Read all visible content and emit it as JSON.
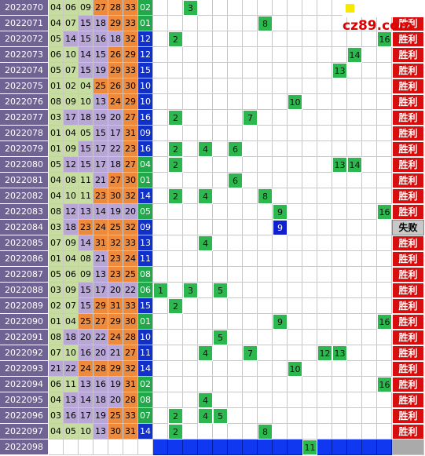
{
  "logo": "cz89.com",
  "rows": [
    {
      "issue": "2022070",
      "reds": [
        "04",
        "06",
        "09",
        "27",
        "28",
        "33"
      ],
      "blue": "02",
      "marks": [
        3
      ]
    },
    {
      "issue": "2022071",
      "reds": [
        "04",
        "07",
        "15",
        "18",
        "29",
        "33"
      ],
      "blue": "01",
      "marks": [
        8
      ],
      "result": "胜利"
    },
    {
      "issue": "2022072",
      "reds": [
        "05",
        "14",
        "15",
        "16",
        "18",
        "32"
      ],
      "blue": "12",
      "marks": [
        2,
        16
      ],
      "result": "胜利"
    },
    {
      "issue": "2022073",
      "reds": [
        "06",
        "10",
        "14",
        "15",
        "26",
        "29"
      ],
      "blue": "12",
      "marks": [
        14
      ],
      "result": "胜利"
    },
    {
      "issue": "2022074",
      "reds": [
        "05",
        "07",
        "15",
        "19",
        "29",
        "33"
      ],
      "blue": "15",
      "marks": [
        13
      ],
      "result": "胜利"
    },
    {
      "issue": "2022075",
      "reds": [
        "01",
        "02",
        "04",
        "25",
        "26",
        "30"
      ],
      "blue": "10",
      "marks": [],
      "result": "胜利"
    },
    {
      "issue": "2022076",
      "reds": [
        "08",
        "09",
        "10",
        "13",
        "24",
        "29"
      ],
      "blue": "10",
      "marks": [
        10
      ],
      "result": "胜利"
    },
    {
      "issue": "2022077",
      "reds": [
        "03",
        "17",
        "18",
        "19",
        "20",
        "27"
      ],
      "blue": "16",
      "marks": [
        2,
        7
      ],
      "result": "胜利"
    },
    {
      "issue": "2022078",
      "reds": [
        "01",
        "04",
        "05",
        "15",
        "17",
        "31"
      ],
      "blue": "09",
      "marks": [],
      "result": "胜利"
    },
    {
      "issue": "2022079",
      "reds": [
        "01",
        "09",
        "15",
        "17",
        "22",
        "23"
      ],
      "blue": "16",
      "marks": [
        2,
        4,
        6
      ],
      "result": "胜利"
    },
    {
      "issue": "2022080",
      "reds": [
        "05",
        "12",
        "15",
        "17",
        "18",
        "27"
      ],
      "blue": "04",
      "marks": [
        2,
        13,
        14
      ],
      "result": "胜利"
    },
    {
      "issue": "2022081",
      "reds": [
        "04",
        "08",
        "11",
        "21",
        "27",
        "30"
      ],
      "blue": "01",
      "marks": [
        6
      ],
      "result": "胜利"
    },
    {
      "issue": "2022082",
      "reds": [
        "04",
        "10",
        "11",
        "23",
        "30",
        "32"
      ],
      "blue": "14",
      "marks": [
        2,
        4,
        8
      ],
      "result": "胜利"
    },
    {
      "issue": "2022083",
      "reds": [
        "08",
        "12",
        "13",
        "14",
        "19",
        "20"
      ],
      "blue": "05",
      "marks": [
        9,
        16
      ],
      "result": "胜利"
    },
    {
      "issue": "2022084",
      "reds": [
        "03",
        "18",
        "23",
        "24",
        "25",
        "32"
      ],
      "blue": "09",
      "marks": [
        9
      ],
      "result": "失败"
    },
    {
      "issue": "2022085",
      "reds": [
        "07",
        "09",
        "14",
        "31",
        "32",
        "33"
      ],
      "blue": "13",
      "marks": [
        4
      ],
      "result": "胜利"
    },
    {
      "issue": "2022086",
      "reds": [
        "01",
        "04",
        "08",
        "21",
        "23",
        "24"
      ],
      "blue": "11",
      "marks": [],
      "result": "胜利"
    },
    {
      "issue": "2022087",
      "reds": [
        "05",
        "06",
        "09",
        "13",
        "23",
        "25"
      ],
      "blue": "08",
      "marks": [],
      "result": "胜利"
    },
    {
      "issue": "2022088",
      "reds": [
        "03",
        "09",
        "15",
        "17",
        "20",
        "22"
      ],
      "blue": "06",
      "marks": [
        1,
        3,
        5
      ],
      "result": "胜利"
    },
    {
      "issue": "2022089",
      "reds": [
        "02",
        "07",
        "15",
        "29",
        "31",
        "33"
      ],
      "blue": "15",
      "marks": [
        2
      ],
      "result": "胜利"
    },
    {
      "issue": "2022090",
      "reds": [
        "01",
        "04",
        "25",
        "27",
        "29",
        "30"
      ],
      "blue": "01",
      "marks": [
        9,
        16
      ],
      "result": "胜利"
    },
    {
      "issue": "2022091",
      "reds": [
        "08",
        "18",
        "20",
        "22",
        "24",
        "28"
      ],
      "blue": "10",
      "marks": [
        5
      ],
      "result": "胜利"
    },
    {
      "issue": "2022092",
      "reds": [
        "07",
        "10",
        "16",
        "20",
        "21",
        "27"
      ],
      "blue": "11",
      "marks": [
        4,
        7,
        12,
        13
      ],
      "result": "胜利"
    },
    {
      "issue": "2022093",
      "reds": [
        "21",
        "22",
        "24",
        "28",
        "29",
        "32"
      ],
      "blue": "14",
      "marks": [
        10
      ],
      "result": "胜利"
    },
    {
      "issue": "2022094",
      "reds": [
        "06",
        "11",
        "13",
        "16",
        "19",
        "31"
      ],
      "blue": "02",
      "marks": [
        16
      ],
      "result": "胜利"
    },
    {
      "issue": "2022095",
      "reds": [
        "04",
        "13",
        "14",
        "18",
        "20",
        "28"
      ],
      "blue": "08",
      "marks": [
        4
      ],
      "result": "胜利"
    },
    {
      "issue": "2022096",
      "reds": [
        "03",
        "16",
        "17",
        "19",
        "25",
        "33"
      ],
      "blue": "07",
      "marks": [
        2,
        4,
        5
      ],
      "result": "胜利"
    },
    {
      "issue": "2022097",
      "reds": [
        "04",
        "05",
        "10",
        "13",
        "30",
        "31"
      ],
      "blue": "14",
      "marks": [
        2,
        8
      ],
      "result": "胜利"
    },
    {
      "issue": "2022098",
      "marks": [
        11
      ]
    }
  ]
}
